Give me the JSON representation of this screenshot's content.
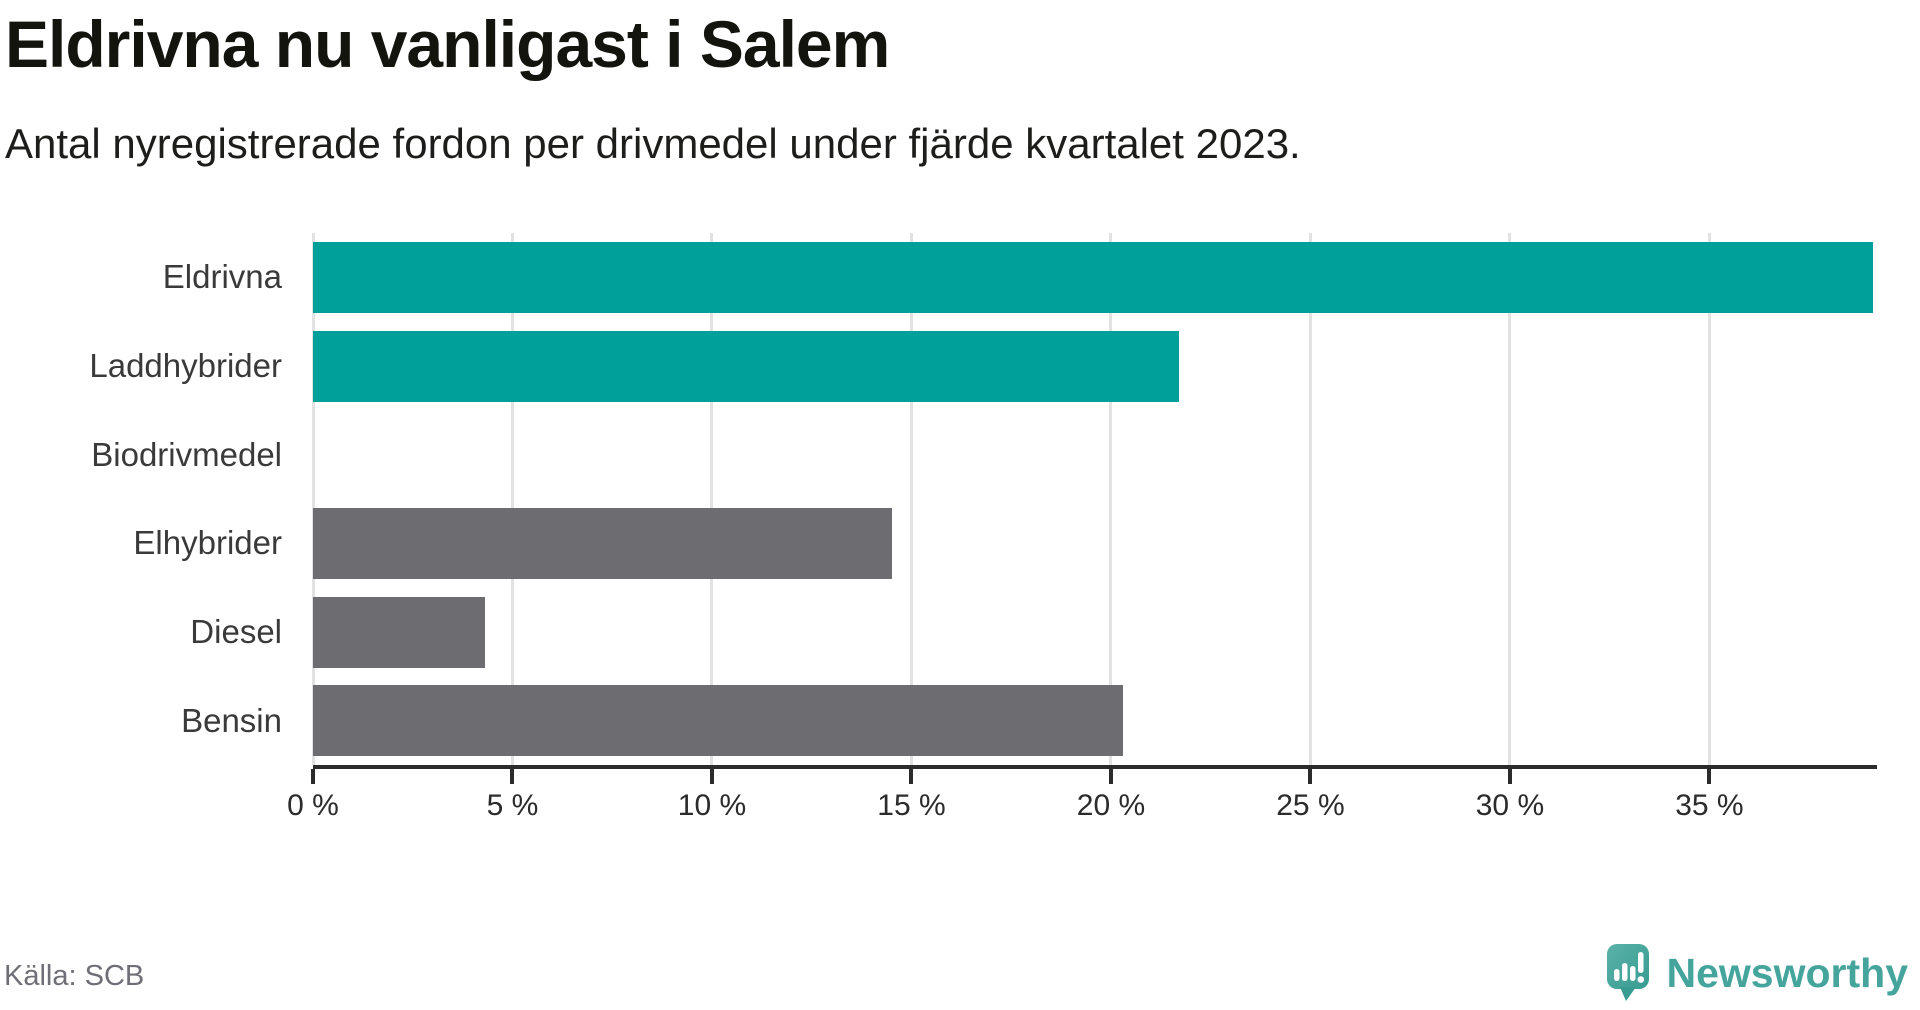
{
  "header": {
    "title": "Eldrivna nu vanligast i Salem",
    "subtitle": "Antal nyregistrerade fordon per drivmedel under fjärde kvartalet 2023."
  },
  "chart_data": {
    "type": "bar",
    "orientation": "horizontal",
    "title": "Eldrivna nu vanligast i Salem",
    "subtitle": "Antal nyregistrerade fordon per drivmedel under fjärde kvartalet 2023.",
    "categories": [
      "Eldrivna",
      "Laddhybrider",
      "Biodrivmedel",
      "Elhybrider",
      "Diesel",
      "Bensin"
    ],
    "values": [
      39.1,
      21.7,
      0,
      14.5,
      4.3,
      20.3
    ],
    "unit": "%",
    "bar_palette": [
      "#00a09a",
      "#00a09a",
      "#6c6c71",
      "#6c6c71",
      "#6c6c71",
      "#6c6c71"
    ],
    "highlight_color": "#00a09a",
    "default_color": "#6c6c71",
    "xlabel": "",
    "ylabel": "",
    "xlim": [
      0,
      39.2
    ],
    "x_tick_values": [
      0,
      5,
      10,
      15,
      20,
      25,
      30,
      35
    ],
    "x_tick_labels": [
      "0 %",
      "5 %",
      "10 %",
      "15 %",
      "20 %",
      "25 %",
      "30 %",
      "35 %"
    ],
    "grid": true,
    "legend": "none"
  },
  "colors": {
    "accent_teal": "#00a09a",
    "neutral_gray": "#6c6c71",
    "gridline": "#e2e2e2",
    "axis": "#2b2b2b",
    "brand_teal": "#45a49c"
  },
  "footer": {
    "source": "Källa: SCB",
    "brand": "Newsworthy"
  }
}
